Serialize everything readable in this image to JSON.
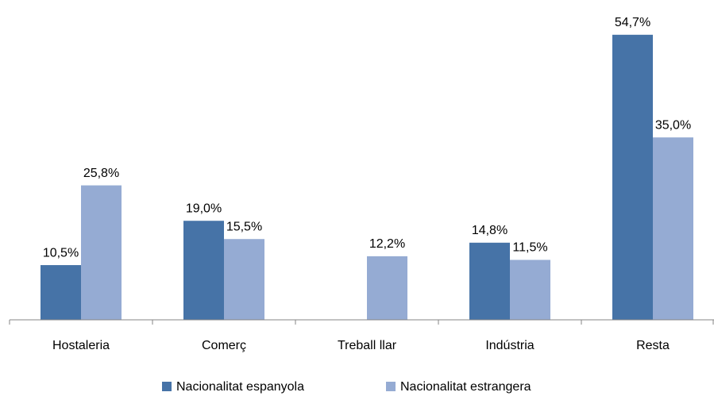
{
  "chart_data": {
    "type": "bar",
    "categories": [
      "Hostaleria",
      "Comerç",
      "Treball llar",
      "Indústria",
      "Resta"
    ],
    "series": [
      {
        "name": "Nacionalitat espanyola",
        "color": "#4673a7",
        "values": [
          10.5,
          19.0,
          null,
          14.8,
          54.7
        ],
        "value_labels": [
          "10,5%",
          "19,0%",
          null,
          "14,8%",
          "54,7%"
        ]
      },
      {
        "name": "Nacionalitat estrangera",
        "color": "#95abd3",
        "values": [
          25.8,
          15.5,
          12.2,
          11.5,
          35.0
        ],
        "value_labels": [
          "25,8%",
          "15,5%",
          "12,2%",
          "11,5%",
          "35,0%"
        ]
      }
    ],
    "ylim": [
      0,
      60
    ],
    "legend": "bottom"
  }
}
